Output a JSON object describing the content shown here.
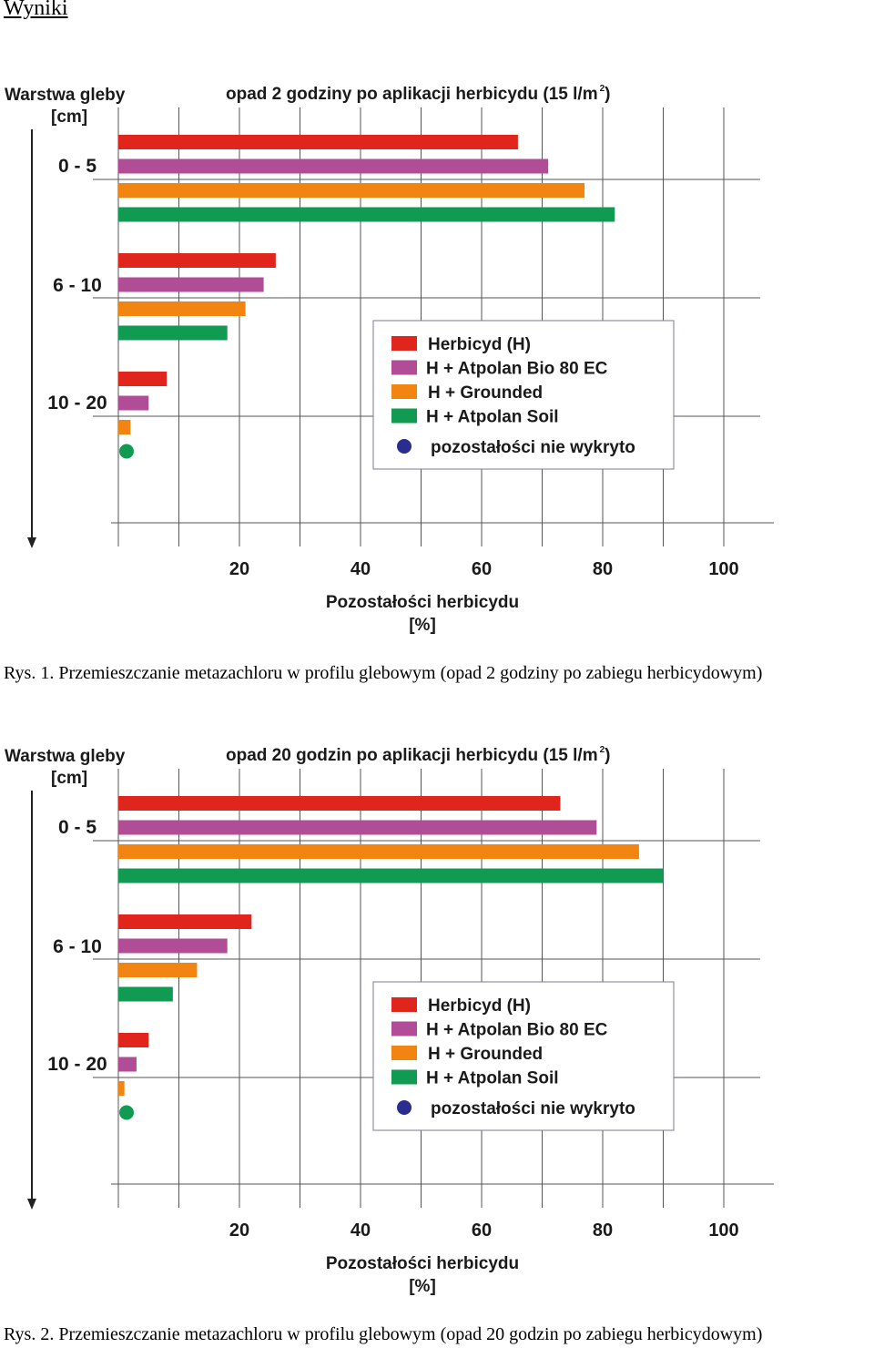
{
  "heading": "Wyniki",
  "colors": {
    "herbicyd": "#e0261c",
    "atpolan_bio": "#b14d96",
    "grounded": "#f28512",
    "atpolan_soil": "#109a52",
    "not_detected_marker": "#2b2d8e",
    "grid": "#555555"
  },
  "chart_data": [
    {
      "type": "bar",
      "orientation": "horizontal",
      "title": "opad 2 godziny po aplikacji herbicydu (15 l/m",
      "title_sup": "2",
      "title_end": ")",
      "ylabel_line1": "Warstwa gleby",
      "ylabel_line2": "[cm]",
      "xlabel_line1": "Pozostałości herbicydu",
      "xlabel_line2": "[%]",
      "categories": [
        "0 - 5",
        "6 - 10",
        "10 - 20"
      ],
      "xticks": [
        "20",
        "40",
        "60",
        "80",
        "100"
      ],
      "xlim": [
        0,
        100
      ],
      "grid": true,
      "legend_position": "center-right",
      "legend": [
        {
          "label": "Herbicyd (H)",
          "color": "#e0261c",
          "shape": "square"
        },
        {
          "label": "H + Atpolan Bio 80 EC",
          "color": "#b14d96",
          "shape": "square"
        },
        {
          "label": "H + Grounded",
          "color": "#f28512",
          "shape": "square"
        },
        {
          "label": "H + Atpolan Soil",
          "color": "#109a52",
          "shape": "square"
        },
        {
          "label": "pozostałości nie wykryto",
          "color": "#2b2d8e",
          "shape": "circle"
        }
      ],
      "series": [
        {
          "name": "Herbicyd (H)",
          "color": "#e0261c",
          "values": [
            66,
            26,
            8
          ]
        },
        {
          "name": "H + Atpolan Bio 80 EC",
          "color": "#b14d96",
          "values": [
            71,
            24,
            5
          ]
        },
        {
          "name": "H + Grounded",
          "color": "#f28512",
          "values": [
            77,
            21,
            2
          ]
        },
        {
          "name": "H + Atpolan Soil",
          "color": "#109a52",
          "values": [
            82,
            18,
            null
          ]
        }
      ],
      "not_detected": [
        {
          "series": "H + Atpolan Soil",
          "category": "10 - 20"
        }
      ],
      "caption": "Rys. 1. Przemieszczanie metazachloru w profilu glebowym (opad 2 godziny po zabiegu herbicydowym)"
    },
    {
      "type": "bar",
      "orientation": "horizontal",
      "title": "opad 20 godzin po aplikacji herbicydu (15 l/m",
      "title_sup": "2",
      "title_end": ")",
      "ylabel_line1": "Warstwa gleby",
      "ylabel_line2": "[cm]",
      "xlabel_line1": "Pozostałości herbicydu",
      "xlabel_line2": "[%]",
      "categories": [
        "0 - 5",
        "6 - 10",
        "10 - 20"
      ],
      "xticks": [
        "20",
        "40",
        "60",
        "80",
        "100"
      ],
      "xlim": [
        0,
        100
      ],
      "grid": true,
      "legend_position": "center-right",
      "legend": [
        {
          "label": "Herbicyd (H)",
          "color": "#e0261c",
          "shape": "square"
        },
        {
          "label": "H + Atpolan Bio 80 EC",
          "color": "#b14d96",
          "shape": "square"
        },
        {
          "label": "H + Grounded",
          "color": "#f28512",
          "shape": "square"
        },
        {
          "label": "H + Atpolan Soil",
          "color": "#109a52",
          "shape": "square"
        },
        {
          "label": "pozostałości nie wykryto",
          "color": "#2b2d8e",
          "shape": "circle"
        }
      ],
      "series": [
        {
          "name": "Herbicyd (H)",
          "color": "#e0261c",
          "values": [
            73,
            22,
            5
          ]
        },
        {
          "name": "H + Atpolan Bio 80 EC",
          "color": "#b14d96",
          "values": [
            79,
            18,
            3
          ]
        },
        {
          "name": "H + Grounded",
          "color": "#f28512",
          "values": [
            86,
            13,
            1
          ]
        },
        {
          "name": "H + Atpolan Soil",
          "color": "#109a52",
          "values": [
            90,
            9,
            null
          ]
        }
      ],
      "not_detected": [
        {
          "series": "H + Atpolan Soil",
          "category": "10 - 20"
        }
      ],
      "caption": "Rys. 2. Przemieszczanie metazachloru w profilu glebowym (opad 20 godzin po zabiegu herbicydowym)"
    }
  ]
}
